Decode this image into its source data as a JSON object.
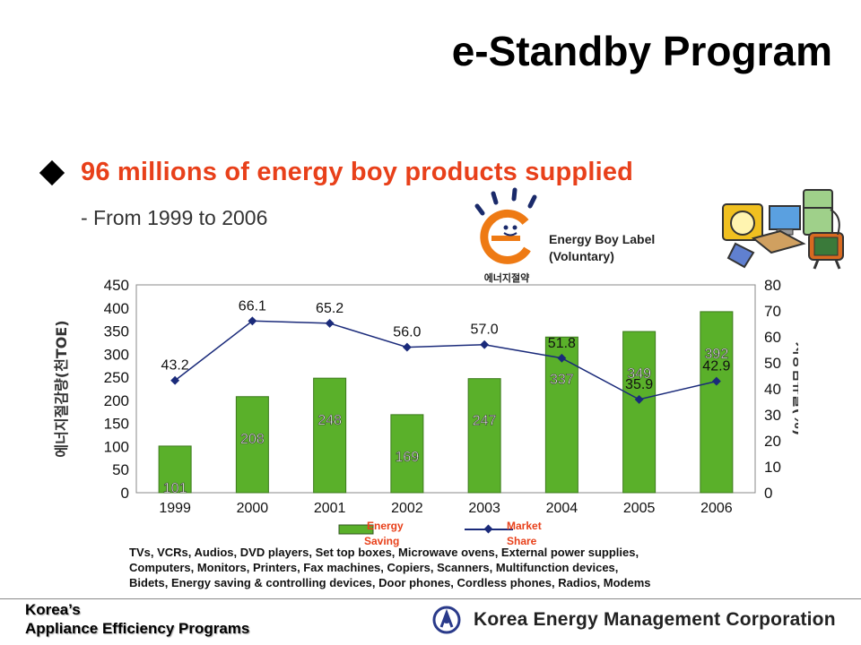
{
  "slide": {
    "title": "e-Standby Program",
    "headline": "96 millions of energy boy products supplied",
    "subline": "- From 1999 to 2006",
    "logo_text": "에너지절약",
    "logo_caption_line1": "Energy Boy Label",
    "logo_caption_line2": "(Voluntary)",
    "products_line1": "TVs, VCRs, Audios, DVD players, Set top boxes,  Microwave ovens, External power supplies,",
    "products_line2": "Computers, Monitors, Printers, Fax machines, Copiers, Scanners, Multifunction  devices,",
    "products_line3": "Bidets, Energy saving & controlling devices, Door phones, Cordless phones, Radios, Modems",
    "footer_line1": "Korea’s",
    "footer_line2": "Appliance Efficiency Programs",
    "org_name": "Korea Energy Management Corporation"
  },
  "colors": {
    "headline": "#e8401a",
    "bar": "#5ab02a",
    "line": "#1a2a7a",
    "legend_text": "#e8401a"
  },
  "chart_data": {
    "type": "bar",
    "categories": [
      "1999",
      "2000",
      "2001",
      "2002",
      "2003",
      "2004",
      "2005",
      "2006"
    ],
    "series": [
      {
        "name": "Energy Saving",
        "type": "bar",
        "axis": "left",
        "values": [
          101,
          208,
          248,
          169,
          247,
          337,
          349,
          392
        ]
      },
      {
        "name": "Market Share",
        "type": "line",
        "axis": "right",
        "values": [
          43.2,
          66.1,
          65.2,
          56.0,
          57.0,
          51.8,
          35.9,
          42.9
        ]
      }
    ],
    "y_left": {
      "label": "에너지절감량(천TOE)",
      "ylim": [
        0,
        450
      ],
      "ticks": [
        "0",
        "50",
        "100",
        "150",
        "200",
        "250",
        "300",
        "350",
        "400",
        "450"
      ]
    },
    "y_right": {
      "label": "시장점유율(%)",
      "ylim": [
        0,
        80
      ],
      "ticks": [
        "0",
        "10",
        "20",
        "30",
        "40",
        "50",
        "60",
        "70",
        "80"
      ]
    },
    "bar_labels": [
      "101",
      "208",
      "248",
      "169",
      "247",
      "337",
      "349",
      "392"
    ],
    "line_labels": [
      "43.2",
      "66.1",
      "65.2",
      "56.0",
      "57.0",
      "51.8",
      "35.9",
      "42.9"
    ],
    "legend": {
      "position": "bottom",
      "items": [
        {
          "label": "Energy Saving",
          "line1": "Energy",
          "line2": "Saving"
        },
        {
          "label": "Market Share",
          "line1": "Market",
          "line2": "Share"
        }
      ]
    },
    "grid": false
  }
}
